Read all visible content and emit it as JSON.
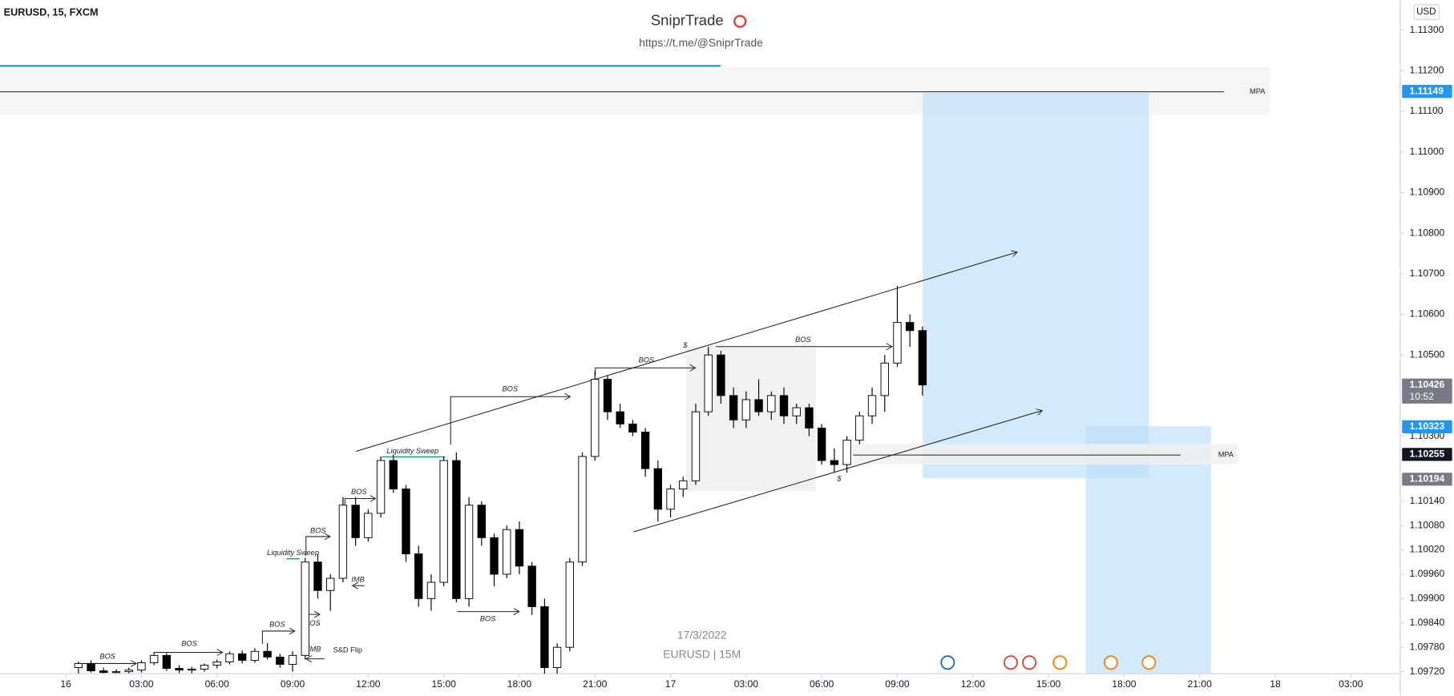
{
  "header": {
    "symbol": "EURUSD, 15, FXCM",
    "brand": "SniprTrade",
    "link": "https://t.me/@SniprTrade",
    "currency": "USD"
  },
  "footer": {
    "date": "17/3/2022",
    "pair": "EURUSD | 15M"
  },
  "annotations": [
    "BOS",
    "BOS",
    "BOS",
    "BOS",
    "BOS",
    "BOS",
    "BOS",
    "BOS",
    "BOS",
    "BOS",
    "Liquidity Sweep",
    "Liquidity Sweep",
    "IMB",
    "IMB",
    "S&D Flip",
    "$",
    "$",
    "MPA",
    "MPA"
  ],
  "chart_data": {
    "type": "candlestick",
    "x": [
      0.5,
      1,
      1.5,
      2,
      2.5,
      3,
      3.5,
      4,
      4.5,
      5,
      5.5,
      6,
      6.5,
      7,
      7.5,
      8,
      8.5,
      9,
      9.5,
      10,
      10.5,
      11,
      11.5,
      12,
      12.5,
      13,
      13.5,
      14,
      14.5,
      15,
      15.5,
      16,
      16.5,
      17,
      17.5,
      18,
      18.5,
      19,
      19.5,
      20,
      20.5,
      21,
      21.5,
      22,
      22.5,
      23,
      23.5,
      24,
      24.5,
      25,
      25.5,
      26,
      26.5,
      27,
      27.5,
      28,
      28.5,
      29,
      29.5,
      30,
      30.5,
      31,
      31.5,
      32,
      32.5,
      33,
      33.5,
      34
    ],
    "open": [
      1.0973,
      1.0974,
      1.09722,
      1.09718,
      1.0972,
      1.09724,
      1.09742,
      1.0976,
      1.09728,
      1.09724,
      1.09726,
      1.09736,
      1.09744,
      1.09764,
      1.09748,
      1.0977,
      1.09756,
      1.09738,
      1.0976,
      1.0999,
      1.0992,
      1.0995,
      1.1013,
      1.1005,
      1.1011,
      1.1024,
      1.1017,
      1.1001,
      1.099,
      1.0994,
      1.1024,
      1.099,
      1.1013,
      1.1005,
      1.0996,
      1.1007,
      1.0998,
      1.0988,
      1.0973,
      1.0978,
      1.0999,
      1.1025,
      1.1044,
      1.1036,
      1.1033,
      1.1031,
      1.1022,
      1.1012,
      1.1017,
      1.1019,
      1.1036,
      1.105,
      1.104,
      1.1034,
      1.1039,
      1.1036,
      1.104,
      1.1035,
      1.1037,
      1.1032,
      1.1024,
      1.1023,
      1.1029,
      1.1035,
      1.104,
      1.1048,
      1.1058,
      1.1056
    ],
    "high": [
      1.09745,
      1.09748,
      1.0973,
      1.09726,
      1.0973,
      1.09748,
      1.09768,
      1.09766,
      1.09736,
      1.09732,
      1.0974,
      1.0975,
      1.0977,
      1.09772,
      1.09778,
      1.0979,
      1.09764,
      1.0977,
      1.1,
      1.1001,
      1.0996,
      1.1015,
      1.1015,
      1.1012,
      1.1025,
      1.10255,
      1.1018,
      1.1003,
      1.0996,
      1.1025,
      1.1026,
      1.1015,
      1.1014,
      1.1006,
      1.1008,
      1.1009,
      1.0999,
      1.099,
      1.0979,
      1.1,
      1.1026,
      1.1046,
      1.1045,
      1.1038,
      1.1034,
      1.1032,
      1.1024,
      1.1018,
      1.102,
      1.1038,
      1.1052,
      1.1051,
      1.1042,
      1.1041,
      1.1044,
      1.1041,
      1.1042,
      1.1038,
      1.1038,
      1.1033,
      1.1027,
      1.103,
      1.1036,
      1.1042,
      1.105,
      1.1067,
      1.106,
      1.1057
    ],
    "low": [
      1.09716,
      1.09718,
      1.09716,
      1.09716,
      1.09716,
      1.09718,
      1.09736,
      1.09722,
      1.09716,
      1.09716,
      1.0972,
      1.09728,
      1.09738,
      1.0974,
      1.09742,
      1.0975,
      1.0973,
      1.0972,
      1.0975,
      1.099,
      1.0987,
      1.0994,
      1.1003,
      1.1004,
      1.101,
      1.1016,
      1.0999,
      1.0988,
      1.0987,
      1.0993,
      1.0989,
      1.0988,
      1.1003,
      1.0993,
      1.0995,
      1.0996,
      1.0986,
      1.0971,
      1.097,
      1.0977,
      1.0998,
      1.1024,
      1.1034,
      1.1032,
      1.103,
      1.102,
      1.1009,
      1.101,
      1.1015,
      1.1018,
      1.1035,
      1.1038,
      1.1032,
      1.1032,
      1.1035,
      1.1034,
      1.1033,
      1.1033,
      1.103,
      1.1023,
      1.1021,
      1.1021,
      1.1028,
      1.1033,
      1.1036,
      1.1047,
      1.1052,
      1.104
    ],
    "close": [
      1.0974,
      1.09722,
      1.09718,
      1.0972,
      1.09724,
      1.09742,
      1.0976,
      1.09728,
      1.09724,
      1.09726,
      1.09736,
      1.09744,
      1.09764,
      1.09748,
      1.0977,
      1.09756,
      1.09738,
      1.0976,
      1.0999,
      1.0992,
      1.0995,
      1.1013,
      1.1005,
      1.1011,
      1.1024,
      1.1017,
      1.1001,
      1.099,
      1.0994,
      1.1024,
      1.099,
      1.1013,
      1.1005,
      1.0996,
      1.1007,
      1.0998,
      1.0988,
      1.0973,
      1.0978,
      1.0999,
      1.1025,
      1.1044,
      1.1036,
      1.1033,
      1.1031,
      1.1022,
      1.1012,
      1.1017,
      1.1019,
      1.1036,
      1.105,
      1.104,
      1.1034,
      1.1039,
      1.1036,
      1.104,
      1.1035,
      1.1037,
      1.1032,
      1.1024,
      1.1023,
      1.1029,
      1.1035,
      1.104,
      1.1048,
      1.1058,
      1.1056,
      1.10426
    ],
    "up_color": "#ffffff",
    "down_color": "#000000",
    "outline_color": "#000000",
    "xlim": [
      -2.613,
      52.96
    ],
    "xticks": [
      {
        "value": 0,
        "label": "16"
      },
      {
        "value": 3,
        "label": "03:00"
      },
      {
        "value": 6,
        "label": "06:00"
      },
      {
        "value": 9,
        "label": "09:00"
      },
      {
        "value": 12,
        "label": "12:00"
      },
      {
        "value": 15,
        "label": "15:00"
      },
      {
        "value": 18,
        "label": "18:00"
      },
      {
        "value": 21,
        "label": "21:00"
      },
      {
        "value": 24,
        "label": "17"
      },
      {
        "value": 27,
        "label": "03:00"
      },
      {
        "value": 30,
        "label": "06:00"
      },
      {
        "value": 33,
        "label": "09:00"
      },
      {
        "value": 36,
        "label": "12:00"
      },
      {
        "value": 39,
        "label": "15:00"
      },
      {
        "value": 42,
        "label": "18:00"
      },
      {
        "value": 45,
        "label": "21:00"
      },
      {
        "value": 48,
        "label": "18"
      },
      {
        "value": 51,
        "label": "03:00"
      }
    ],
    "ylim": [
      1.09715,
      1.11374
    ],
    "yticks": [
      {
        "value": 1.113,
        "label": "1.11300"
      },
      {
        "value": 1.112,
        "label": "1.11200"
      },
      {
        "value": 1.111,
        "label": "1.11100"
      },
      {
        "value": 1.11,
        "label": "1.11000"
      },
      {
        "value": 1.109,
        "label": "1.10900"
      },
      {
        "value": 1.108,
        "label": "1.10800"
      },
      {
        "value": 1.107,
        "label": "1.10700"
      },
      {
        "value": 1.106,
        "label": "1.10600"
      },
      {
        "value": 1.105,
        "label": "1.10500"
      },
      {
        "value": 1.103,
        "label": "1.10300"
      },
      {
        "value": 1.1014,
        "label": "1.10140"
      },
      {
        "value": 1.1008,
        "label": "1.10080"
      },
      {
        "value": 1.1002,
        "label": "1.10020"
      },
      {
        "value": 1.0996,
        "label": "1.09960"
      },
      {
        "value": 1.099,
        "label": "1.09900"
      },
      {
        "value": 1.0984,
        "label": "1.09840"
      },
      {
        "value": 1.0978,
        "label": "1.09780"
      },
      {
        "value": 1.0972,
        "label": "1.09720"
      }
    ],
    "price_labels": [
      1.11149,
      1.10426,
      1.10323,
      1.10255,
      1.10194
    ],
    "price_label_colors": [
      "#2196f3",
      "#787b86",
      "#2196f3",
      "#131722",
      "#787b86"
    ],
    "countdown": "10:52"
  }
}
